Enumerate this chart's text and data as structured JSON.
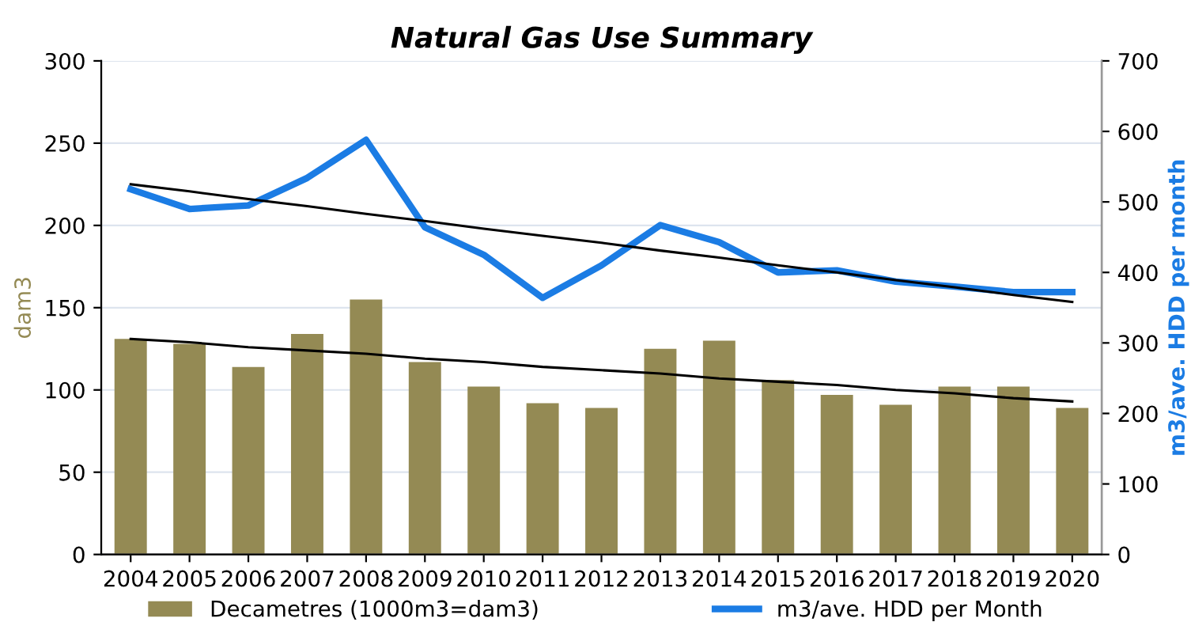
{
  "chart_data": {
    "type": "bar",
    "title": "Natural Gas Use Summary",
    "ylabel": "dam3",
    "y2label": "m3/ave. HDD per month",
    "categories": [
      "2004",
      "2005",
      "2006",
      "2007",
      "2008",
      "2009",
      "2010",
      "2011",
      "2012",
      "2013",
      "2014",
      "2015",
      "2016",
      "2017",
      "2018",
      "2019",
      "2020"
    ],
    "series": [
      {
        "name": "Decametres (1000m3=dam3)",
        "color": "#948a54",
        "values": [
          131,
          128,
          114,
          134,
          155,
          117,
          102,
          92,
          89,
          125,
          130,
          106,
          97,
          91,
          102,
          102,
          89
        ]
      },
      {
        "name": "m3/ave. HDD per Month",
        "color": "#1b7ce4",
        "type": "line",
        "axis": "y2",
        "values": [
          518,
          490,
          495,
          534,
          588,
          464,
          425,
          364,
          410,
          467,
          443,
          400,
          403,
          387,
          380,
          372,
          372
        ]
      },
      {
        "color": "#000000",
        "type": "line",
        "values": [
          131,
          129,
          126,
          124,
          122,
          119,
          117,
          114,
          112,
          110,
          107,
          105,
          103,
          100,
          98,
          95,
          93
        ]
      },
      {
        "color": "#000000",
        "type": "line",
        "axis": "y2",
        "values": [
          525,
          515,
          504,
          494,
          483,
          473,
          462,
          452,
          442,
          431,
          421,
          410,
          400,
          389,
          379,
          368,
          358
        ]
      }
    ],
    "ylim": [
      0,
      300
    ],
    "yticks": [
      0,
      50,
      100,
      150,
      200,
      250,
      300
    ],
    "y2lim": [
      0,
      700
    ],
    "y2ticks": [
      0,
      100,
      200,
      300,
      400,
      500,
      600,
      700
    ],
    "grid": "y",
    "legend": "bottom",
    "marker": "none",
    "line_style": "solid"
  }
}
